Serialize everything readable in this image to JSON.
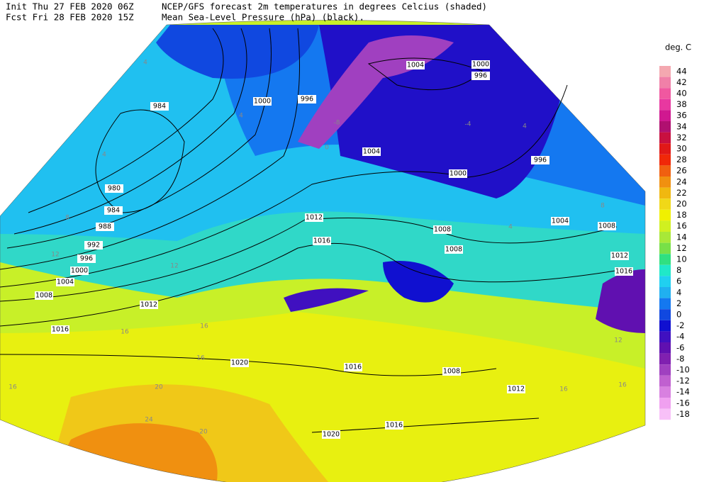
{
  "header": {
    "init": "Init  Thu 27 FEB 2020 06Z",
    "fcst": "Fcst Fri 28 FEB 2020 15Z",
    "title": "NCEP/GFS forecast 2m temperatures in degrees Celcius (shaded)",
    "subtitle": "Mean Sea-Level Pressure (hPa) (black)."
  },
  "colorbar": {
    "unit": "deg. C",
    "levels": [
      {
        "label": "44",
        "color": "#f4a8b0"
      },
      {
        "label": "42",
        "color": "#f080a8"
      },
      {
        "label": "40",
        "color": "#f058a0"
      },
      {
        "label": "38",
        "color": "#e838a0"
      },
      {
        "label": "36",
        "color": "#d01890"
      },
      {
        "label": "34",
        "color": "#b01070"
      },
      {
        "label": "32",
        "color": "#c81040"
      },
      {
        "label": "30",
        "color": "#e01818"
      },
      {
        "label": "28",
        "color": "#f02808"
      },
      {
        "label": "26",
        "color": "#f06010"
      },
      {
        "label": "24",
        "color": "#f09010"
      },
      {
        "label": "22",
        "color": "#f0b810"
      },
      {
        "label": "20",
        "color": "#f0d818"
      },
      {
        "label": "18",
        "color": "#f0f000"
      },
      {
        "label": "16",
        "color": "#d0f020"
      },
      {
        "label": "14",
        "color": "#a8e838"
      },
      {
        "label": "12",
        "color": "#78e048"
      },
      {
        "label": "10",
        "color": "#30e080"
      },
      {
        "label": "8",
        "color": "#20e8c8"
      },
      {
        "label": "6",
        "color": "#20d0f0"
      },
      {
        "label": "4",
        "color": "#20b0f0"
      },
      {
        "label": "2",
        "color": "#1478f0"
      },
      {
        "label": "0",
        "color": "#1048e0"
      },
      {
        "label": "-2",
        "color": "#1010d0"
      },
      {
        "label": "-4",
        "color": "#4010c0"
      },
      {
        "label": "-6",
        "color": "#6010b0"
      },
      {
        "label": "-8",
        "color": "#8020b0"
      },
      {
        "label": "-10",
        "color": "#a040c0"
      },
      {
        "label": "-12",
        "color": "#c060d0"
      },
      {
        "label": "-14",
        "color": "#d880e0"
      },
      {
        "label": "-16",
        "color": "#f0a0f0"
      },
      {
        "label": "-18",
        "color": "#f8c0f8"
      }
    ]
  },
  "isobar_labels": [
    "984",
    "980",
    "984",
    "988",
    "992",
    "996",
    "1000",
    "1004",
    "1008",
    "1012",
    "1016",
    "1020",
    "1016",
    "1020",
    "1016",
    "1000",
    "996",
    "1004",
    "1000",
    "996",
    "1004",
    "1000",
    "996",
    "1012",
    "1016",
    "1008",
    "1008",
    "1004",
    "1008",
    "1012",
    "1016",
    "1008",
    "1012"
  ],
  "temperature_labels": [
    "4",
    "4",
    "4",
    "8",
    "12",
    "12",
    "16",
    "16",
    "16",
    "20",
    "24",
    "20",
    "16",
    "-4",
    "-8",
    "0",
    "4",
    "8",
    "4",
    "16",
    "12",
    "16"
  ]
}
